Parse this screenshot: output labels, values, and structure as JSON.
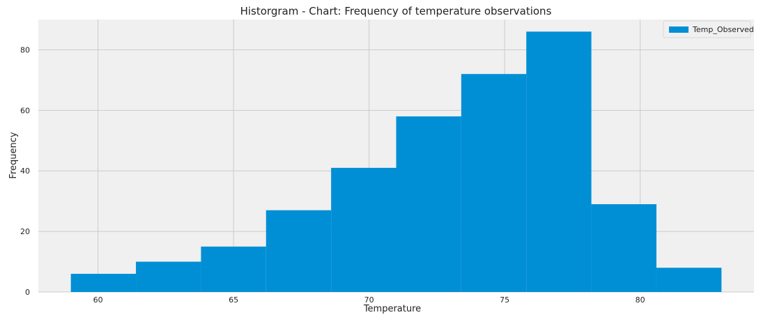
{
  "chart_data": {
    "type": "histogram",
    "title": "Historgram - Chart: Frequency of temperature observations",
    "xlabel": "Temperature",
    "ylabel": "Frequency",
    "xlim": [
      57.8,
      84.2
    ],
    "ylim": [
      0,
      90
    ],
    "xticks": [
      60,
      65,
      70,
      75,
      80
    ],
    "yticks": [
      0,
      20,
      40,
      60,
      80
    ],
    "grid": true,
    "legend_position": "top-right",
    "series": [
      {
        "name": "Temp_Observed",
        "color": "#008fd5",
        "bins": [
          {
            "x0": 59.0,
            "x1": 61.4,
            "count": 6
          },
          {
            "x0": 61.4,
            "x1": 63.8,
            "count": 10
          },
          {
            "x0": 63.8,
            "x1": 66.2,
            "count": 15
          },
          {
            "x0": 66.2,
            "x1": 68.6,
            "count": 27
          },
          {
            "x0": 68.6,
            "x1": 71.0,
            "count": 41
          },
          {
            "x0": 71.0,
            "x1": 73.4,
            "count": 58
          },
          {
            "x0": 73.4,
            "x1": 75.8,
            "count": 72
          },
          {
            "x0": 75.8,
            "x1": 78.2,
            "count": 86
          },
          {
            "x0": 78.2,
            "x1": 80.6,
            "count": 29
          },
          {
            "x0": 80.6,
            "x1": 83.0,
            "count": 8
          }
        ]
      }
    ],
    "colors": {
      "plot_background": "#f0f0f0",
      "grid": "#cbcbcb"
    }
  }
}
